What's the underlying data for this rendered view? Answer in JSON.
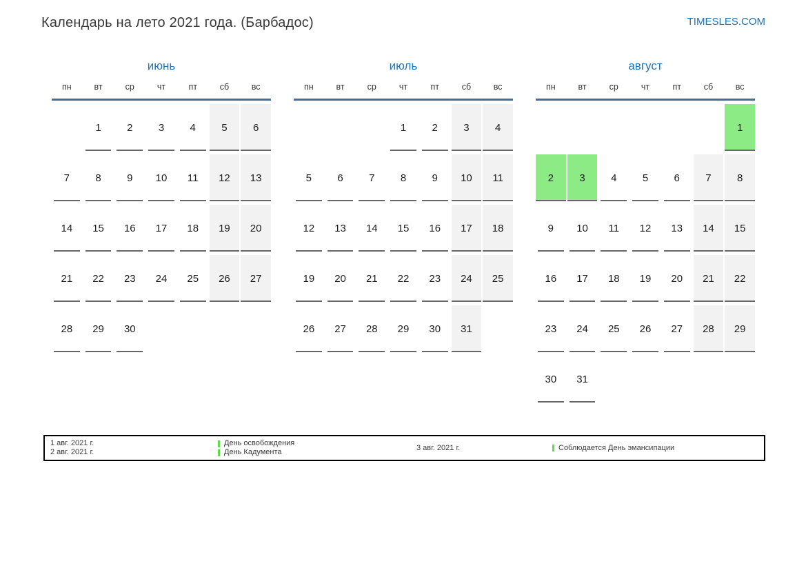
{
  "header": {
    "title": "Календарь на лето 2021 года. (Барбадос)",
    "brand": "TIMESLES.COM"
  },
  "weekdays": [
    "пн",
    "вт",
    "ср",
    "чт",
    "пт",
    "сб",
    "вс"
  ],
  "months": [
    {
      "id": "june",
      "name": "июнь",
      "cells": [
        {
          "t": "empty"
        },
        {
          "d": 1,
          "t": "wd"
        },
        {
          "d": 2,
          "t": "wd"
        },
        {
          "d": 3,
          "t": "wd"
        },
        {
          "d": 4,
          "t": "wd"
        },
        {
          "d": 5,
          "t": "we"
        },
        {
          "d": 6,
          "t": "we"
        },
        {
          "d": 7,
          "t": "wd"
        },
        {
          "d": 8,
          "t": "wd"
        },
        {
          "d": 9,
          "t": "wd"
        },
        {
          "d": 10,
          "t": "wd"
        },
        {
          "d": 11,
          "t": "wd"
        },
        {
          "d": 12,
          "t": "we"
        },
        {
          "d": 13,
          "t": "we"
        },
        {
          "d": 14,
          "t": "wd"
        },
        {
          "d": 15,
          "t": "wd"
        },
        {
          "d": 16,
          "t": "wd"
        },
        {
          "d": 17,
          "t": "wd"
        },
        {
          "d": 18,
          "t": "wd"
        },
        {
          "d": 19,
          "t": "we"
        },
        {
          "d": 20,
          "t": "we"
        },
        {
          "d": 21,
          "t": "wd"
        },
        {
          "d": 22,
          "t": "wd"
        },
        {
          "d": 23,
          "t": "wd"
        },
        {
          "d": 24,
          "t": "wd"
        },
        {
          "d": 25,
          "t": "wd"
        },
        {
          "d": 26,
          "t": "we"
        },
        {
          "d": 27,
          "t": "we"
        },
        {
          "d": 28,
          "t": "wd"
        },
        {
          "d": 29,
          "t": "wd"
        },
        {
          "d": 30,
          "t": "wd"
        },
        {
          "t": "empty"
        },
        {
          "t": "empty"
        },
        {
          "t": "empty"
        },
        {
          "t": "empty"
        }
      ]
    },
    {
      "id": "july",
      "name": "июль",
      "cells": [
        {
          "t": "empty"
        },
        {
          "t": "empty"
        },
        {
          "t": "empty"
        },
        {
          "d": 1,
          "t": "wd"
        },
        {
          "d": 2,
          "t": "wd"
        },
        {
          "d": 3,
          "t": "we"
        },
        {
          "d": 4,
          "t": "we"
        },
        {
          "d": 5,
          "t": "wd"
        },
        {
          "d": 6,
          "t": "wd"
        },
        {
          "d": 7,
          "t": "wd"
        },
        {
          "d": 8,
          "t": "wd"
        },
        {
          "d": 9,
          "t": "wd"
        },
        {
          "d": 10,
          "t": "we"
        },
        {
          "d": 11,
          "t": "we"
        },
        {
          "d": 12,
          "t": "wd"
        },
        {
          "d": 13,
          "t": "wd"
        },
        {
          "d": 14,
          "t": "wd"
        },
        {
          "d": 15,
          "t": "wd"
        },
        {
          "d": 16,
          "t": "wd"
        },
        {
          "d": 17,
          "t": "we"
        },
        {
          "d": 18,
          "t": "we"
        },
        {
          "d": 19,
          "t": "wd"
        },
        {
          "d": 20,
          "t": "wd"
        },
        {
          "d": 21,
          "t": "wd"
        },
        {
          "d": 22,
          "t": "wd"
        },
        {
          "d": 23,
          "t": "wd"
        },
        {
          "d": 24,
          "t": "we"
        },
        {
          "d": 25,
          "t": "we"
        },
        {
          "d": 26,
          "t": "wd"
        },
        {
          "d": 27,
          "t": "wd"
        },
        {
          "d": 28,
          "t": "wd"
        },
        {
          "d": 29,
          "t": "wd"
        },
        {
          "d": 30,
          "t": "wd"
        },
        {
          "d": 31,
          "t": "we"
        },
        {
          "t": "empty"
        }
      ]
    },
    {
      "id": "august",
      "name": "август",
      "cells": [
        {
          "t": "empty"
        },
        {
          "t": "empty"
        },
        {
          "t": "empty"
        },
        {
          "t": "empty"
        },
        {
          "t": "empty"
        },
        {
          "t": "empty"
        },
        {
          "d": 1,
          "t": "hol"
        },
        {
          "d": 2,
          "t": "hol"
        },
        {
          "d": 3,
          "t": "hol"
        },
        {
          "d": 4,
          "t": "wd"
        },
        {
          "d": 5,
          "t": "wd"
        },
        {
          "d": 6,
          "t": "wd"
        },
        {
          "d": 7,
          "t": "we"
        },
        {
          "d": 8,
          "t": "we"
        },
        {
          "d": 9,
          "t": "wd"
        },
        {
          "d": 10,
          "t": "wd"
        },
        {
          "d": 11,
          "t": "wd"
        },
        {
          "d": 12,
          "t": "wd"
        },
        {
          "d": 13,
          "t": "wd"
        },
        {
          "d": 14,
          "t": "we"
        },
        {
          "d": 15,
          "t": "we"
        },
        {
          "d": 16,
          "t": "wd"
        },
        {
          "d": 17,
          "t": "wd"
        },
        {
          "d": 18,
          "t": "wd"
        },
        {
          "d": 19,
          "t": "wd"
        },
        {
          "d": 20,
          "t": "wd"
        },
        {
          "d": 21,
          "t": "we"
        },
        {
          "d": 22,
          "t": "we"
        },
        {
          "d": 23,
          "t": "wd"
        },
        {
          "d": 24,
          "t": "wd"
        },
        {
          "d": 25,
          "t": "wd"
        },
        {
          "d": 26,
          "t": "wd"
        },
        {
          "d": 27,
          "t": "wd"
        },
        {
          "d": 28,
          "t": "we"
        },
        {
          "d": 29,
          "t": "we"
        },
        {
          "d": 30,
          "t": "wd"
        },
        {
          "d": 31,
          "t": "wd"
        },
        {
          "t": "empty"
        },
        {
          "t": "empty"
        },
        {
          "t": "empty"
        },
        {
          "t": "empty"
        },
        {
          "t": "empty"
        }
      ]
    }
  ],
  "legend": {
    "columns": [
      {
        "type": "dates",
        "lines": [
          "1 авг. 2021 г.",
          "2 авг. 2021 г."
        ]
      },
      {
        "type": "holidays",
        "lines": [
          "День освобождения",
          "День Кадумента"
        ]
      },
      {
        "type": "dates",
        "lines": [
          "3 авг. 2021 г."
        ]
      },
      {
        "type": "holidays",
        "lines": [
          "Соблюдается День эмансипации"
        ]
      }
    ]
  },
  "colors": {
    "accent_blue": "#2374b5",
    "header_line": "#466c96",
    "weekend_bg": "#f2f2f2",
    "holiday_bg": "#8deb86",
    "legend_marker": "#62d94e"
  }
}
